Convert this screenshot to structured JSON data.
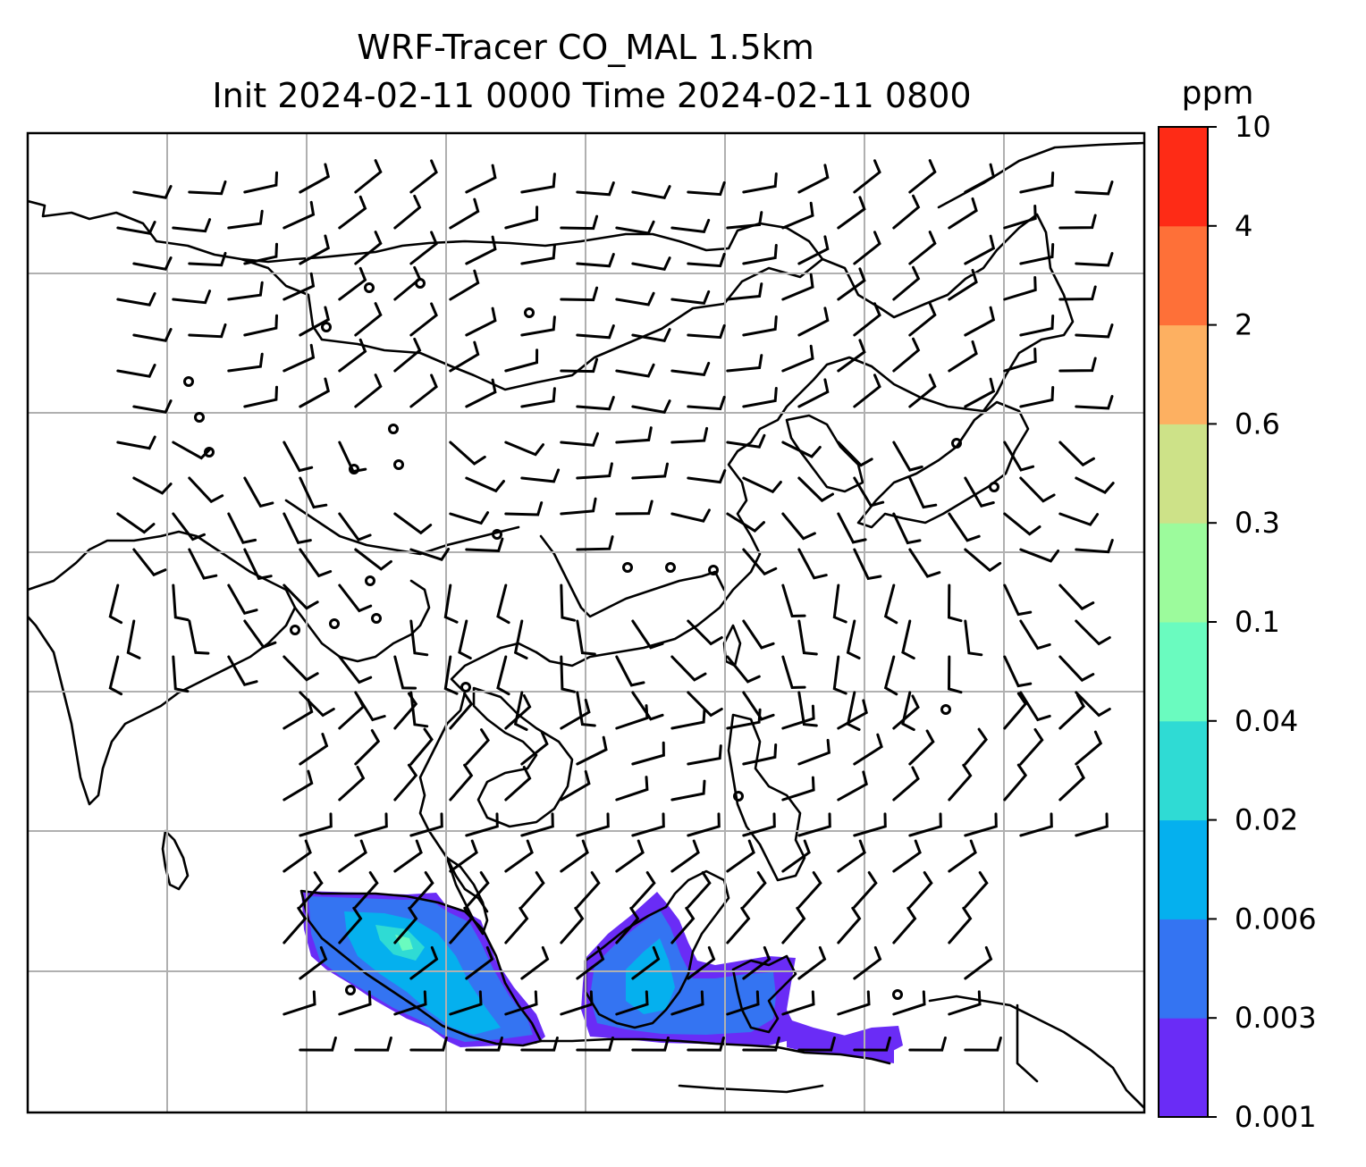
{
  "title": {
    "line1": "WRF-Tracer CO_MAL 1.5km",
    "line2": "Init 2024-02-11 0000 Time 2024-02-11 0800"
  },
  "colorbar": {
    "unit": "ppm",
    "levels": [
      "0.001",
      "0.003",
      "0.006",
      "0.02",
      "0.04",
      "0.1",
      "0.3",
      "0.6",
      "2",
      "4",
      "10"
    ],
    "colors": [
      "#6a2cf6",
      "#3474f2",
      "#05b0ee",
      "#2fdbd4",
      "#6afbbf",
      "#9cfb9c",
      "#cde288",
      "#fdb061",
      "#fe7038",
      "#fe2b16"
    ]
  },
  "map": {
    "background": "#ffffff",
    "coastline_color": "#000000",
    "grid_color": "#b0b0b0",
    "plume_colors": [
      "#6a2cf6",
      "#3474f2",
      "#05b0ee",
      "#2fdbd4",
      "#6afbbf"
    ]
  }
}
